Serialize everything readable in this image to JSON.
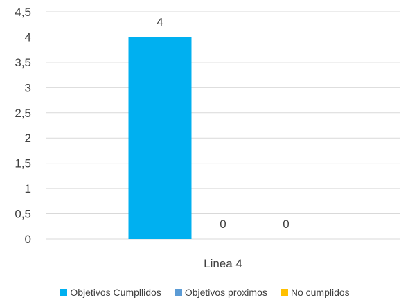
{
  "chart_data": {
    "type": "bar",
    "categories": [
      "Linea 4"
    ],
    "series": [
      {
        "name": "Objetivos Cumpllidos",
        "values": [
          4
        ],
        "color": "#00B0F0"
      },
      {
        "name": "Objetivos proximos",
        "values": [
          0
        ],
        "color": "#5B9BD5"
      },
      {
        "name": "No cumplidos",
        "values": [
          0
        ],
        "color": "#FFC000"
      }
    ],
    "ylim": [
      0,
      4.5
    ],
    "yticks": [
      "0",
      "0,5",
      "1",
      "1,5",
      "2",
      "2,5",
      "3",
      "3,5",
      "4",
      "4,5"
    ],
    "data_labels": [
      "4",
      "0",
      "0"
    ],
    "grid": true,
    "legend_position": "bottom"
  }
}
